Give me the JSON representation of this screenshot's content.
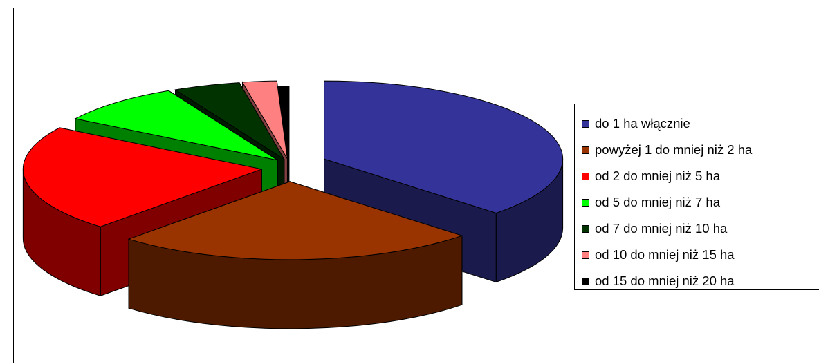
{
  "chart_data": {
    "type": "pie",
    "style": "3d-exploded",
    "categories": [
      "do 1 ha włącznie",
      "powyżej 1 do mniej niż 2 ha",
      "od 2 do mniej niż 5 ha",
      "od 5 do mniej niż 7 ha",
      "od 7 do mniej niż 10 ha",
      "od 10 do mniej niż 15 ha",
      "od 15 do mniej niż 20 ha"
    ],
    "values": [
      37.0,
      24.5,
      22.0,
      8.5,
      4.5,
      2.3,
      0.7
    ],
    "colors": [
      "#333399",
      "#993300",
      "#ff0000",
      "#00ff00",
      "#003300",
      "#ff8080",
      "#000000"
    ],
    "legend_position": "right"
  }
}
